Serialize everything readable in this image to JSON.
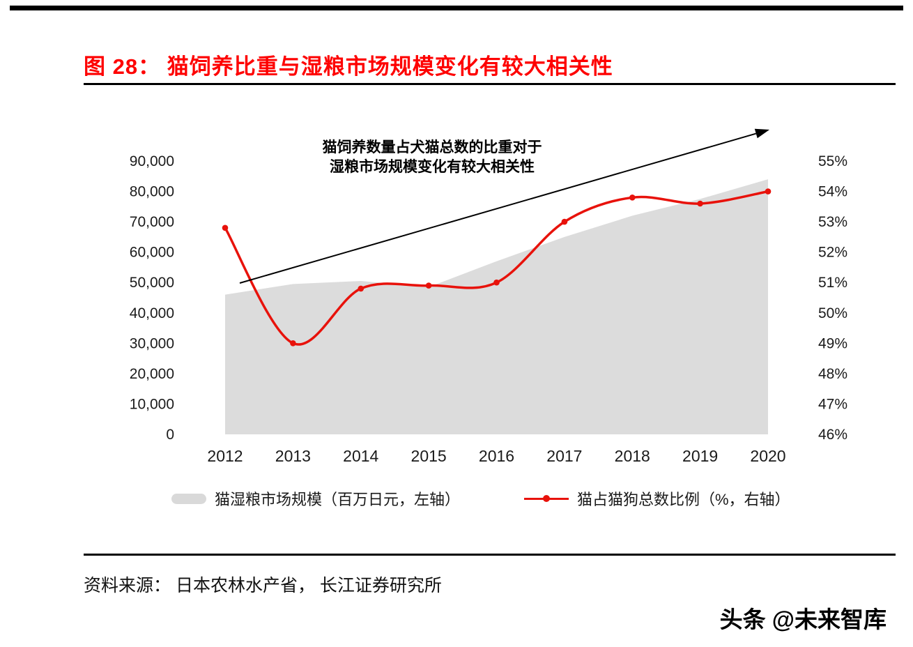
{
  "page": {
    "title": "图 28： 猫饲养比重与湿粮市场规模变化有较大相关性",
    "source": "资料来源： 日本农林水产省， 长江证券研究所",
    "watermark": "头条 @未来智库"
  },
  "colors": {
    "title_red": "#fe0000",
    "line_red": "#e8120b",
    "area_gray": "#dcdcdc",
    "text_black": "#1a1a1a"
  },
  "chart_data": {
    "type": "combo-area-line",
    "categories": [
      "2012",
      "2013",
      "2014",
      "2015",
      "2016",
      "2017",
      "2018",
      "2019",
      "2020"
    ],
    "series": [
      {
        "name": "猫湿粮市场规模（百万日元，左轴）",
        "type": "area",
        "axis": "left",
        "color": "#dcdcdc",
        "values": [
          46000,
          49500,
          50500,
          48500,
          57000,
          65000,
          72000,
          77500,
          84000
        ]
      },
      {
        "name": "猫占猫狗总数比例（%，右轴）",
        "type": "line",
        "axis": "right",
        "color": "#e8120b",
        "values": [
          52.8,
          49.0,
          50.8,
          50.9,
          51.0,
          53.0,
          53.8,
          53.6,
          54.0
        ]
      }
    ],
    "left_axis": {
      "min": 0,
      "max": 90000,
      "step": 10000,
      "tick_labels": [
        "0",
        "10,000",
        "20,000",
        "30,000",
        "40,000",
        "50,000",
        "60,000",
        "70,000",
        "80,000",
        "90,000"
      ]
    },
    "right_axis": {
      "min": 46,
      "max": 55,
      "step": 1,
      "tick_labels": [
        "46%",
        "47%",
        "48%",
        "49%",
        "50%",
        "51%",
        "52%",
        "53%",
        "54%",
        "55%"
      ]
    },
    "annotation": [
      "猫饲养数量占犬猫总数的比重对于",
      "湿粮市场规模变化有较大相关性"
    ],
    "legend_position": "bottom",
    "grid": false,
    "trend_arrow": true
  }
}
